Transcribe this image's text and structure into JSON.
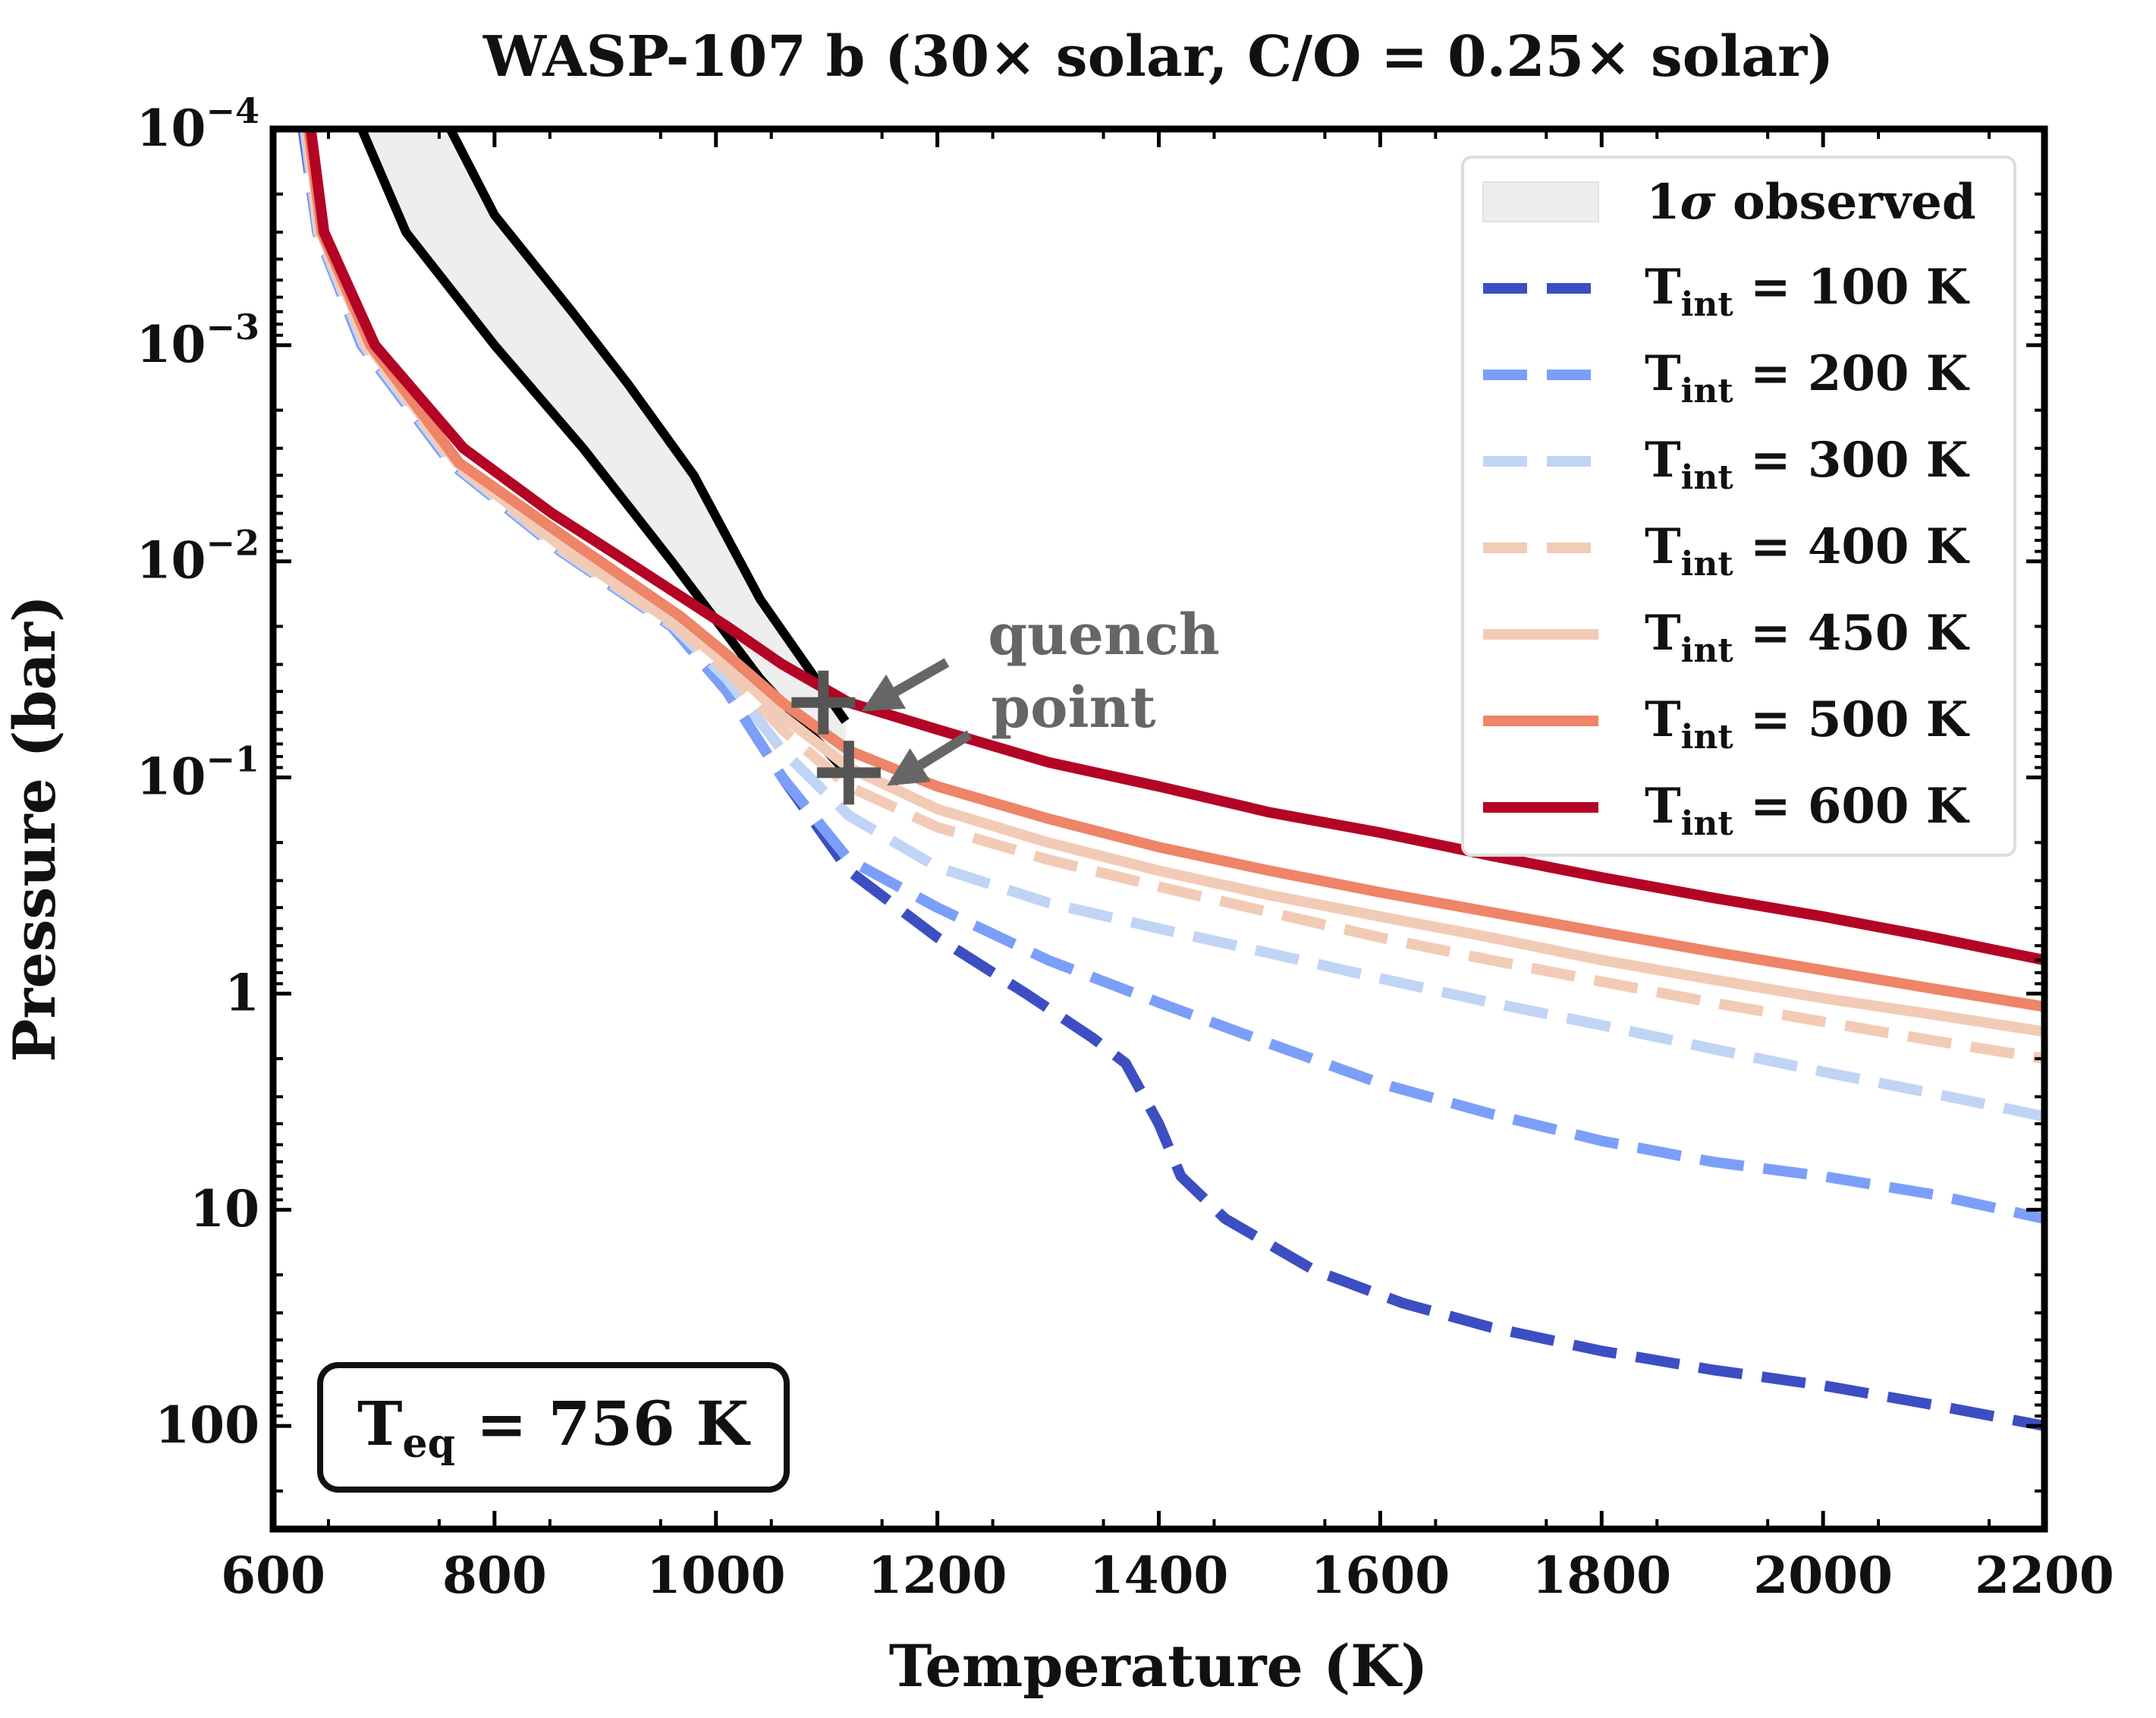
{
  "chart_data": {
    "type": "line",
    "title": "WASP-107 b (30× solar, C/O = 0.25× solar)",
    "xlabel": "Temperature (K)",
    "ylabel": "Pressure (bar)",
    "xlim": [
      600,
      2200
    ],
    "ylim": [
      0.0001,
      300
    ],
    "yscale": "log",
    "yaxis_inverted": true,
    "x_ticks": [
      {
        "value": 600,
        "label": "600"
      },
      {
        "value": 800,
        "label": "800"
      },
      {
        "value": 1000,
        "label": "1000"
      },
      {
        "value": 1200,
        "label": "1200"
      },
      {
        "value": 1400,
        "label": "1400"
      },
      {
        "value": 1600,
        "label": "1600"
      },
      {
        "value": 1800,
        "label": "1800"
      },
      {
        "value": 2000,
        "label": "2000"
      },
      {
        "value": 2200,
        "label": "2200"
      }
    ],
    "y_ticks": [
      {
        "value": 0.0001,
        "base": "10",
        "exp": "−4",
        "label": ""
      },
      {
        "value": 0.001,
        "base": "10",
        "exp": "−3",
        "label": ""
      },
      {
        "value": 0.01,
        "base": "10",
        "exp": "−2",
        "label": ""
      },
      {
        "value": 0.1,
        "base": "10",
        "exp": "−1",
        "label": ""
      },
      {
        "value": 1,
        "base": "",
        "exp": "",
        "label": "1"
      },
      {
        "value": 10,
        "base": "",
        "exp": "",
        "label": "10"
      },
      {
        "value": 100,
        "base": "",
        "exp": "",
        "label": "100"
      }
    ],
    "observed_band": {
      "name": "1σ observed",
      "legend_main": "1",
      "legend_sigma": "σ",
      "legend_rest": " observed",
      "color": "#eeeeee",
      "edge_color": "#000000",
      "lower": [
        [
          680,
          0.0001
        ],
        [
          720,
          0.0003
        ],
        [
          800,
          0.001
        ],
        [
          880,
          0.003
        ],
        [
          960,
          0.01
        ],
        [
          1040,
          0.035
        ],
        [
          1118,
          0.095
        ]
      ],
      "upper": [
        [
          760,
          0.0001
        ],
        [
          800,
          0.00025
        ],
        [
          870,
          0.0007
        ],
        [
          920,
          0.0015
        ],
        [
          980,
          0.004
        ],
        [
          1040,
          0.015
        ],
        [
          1117,
          0.055
        ]
      ]
    },
    "series": [
      {
        "name": "Tint = 100 K",
        "label_main": "T",
        "label_sub": "int",
        "label_rest": " = 100 K",
        "color": "#3c4ec2",
        "dash": true,
        "points": [
          [
            627,
            0.0001
          ],
          [
            640,
            0.0003
          ],
          [
            680,
            0.001
          ],
          [
            760,
            0.0035
          ],
          [
            860,
            0.009
          ],
          [
            960,
            0.02
          ],
          [
            1010,
            0.04
          ],
          [
            1060,
            0.1
          ],
          [
            1120,
            0.27
          ],
          [
            1200,
            0.55
          ],
          [
            1280,
            1.0
          ],
          [
            1340,
            1.6
          ],
          [
            1370,
            2.1
          ],
          [
            1400,
            4
          ],
          [
            1420,
            7
          ],
          [
            1460,
            11
          ],
          [
            1540,
            19
          ],
          [
            1620,
            27
          ],
          [
            1700,
            35
          ],
          [
            1800,
            45
          ],
          [
            1900,
            55
          ],
          [
            2000,
            65
          ],
          [
            2100,
            80
          ],
          [
            2200,
            100
          ]
        ]
      },
      {
        "name": "Tint = 200 K",
        "label_main": "T",
        "label_sub": "int",
        "label_rest": " = 200 K",
        "color": "#7b9ff9",
        "dash": true,
        "points": [
          [
            628,
            0.0001
          ],
          [
            640,
            0.0003
          ],
          [
            680,
            0.001
          ],
          [
            760,
            0.0035
          ],
          [
            860,
            0.009
          ],
          [
            960,
            0.02
          ],
          [
            1010,
            0.04
          ],
          [
            1060,
            0.1
          ],
          [
            1120,
            0.24
          ],
          [
            1200,
            0.4
          ],
          [
            1300,
            0.7
          ],
          [
            1400,
            1.1
          ],
          [
            1500,
            1.7
          ],
          [
            1600,
            2.6
          ],
          [
            1700,
            3.6
          ],
          [
            1800,
            4.8
          ],
          [
            1900,
            6
          ],
          [
            2000,
            7
          ],
          [
            2100,
            8.5
          ],
          [
            2200,
            11
          ]
        ]
      },
      {
        "name": "Tint = 300 K",
        "label_main": "T",
        "label_sub": "int",
        "label_rest": " = 300 K",
        "color": "#c0d4f5",
        "dash": true,
        "points": [
          [
            629,
            0.0001
          ],
          [
            641,
            0.0003
          ],
          [
            682,
            0.001
          ],
          [
            762,
            0.0035
          ],
          [
            862,
            0.009
          ],
          [
            962,
            0.02
          ],
          [
            1010,
            0.035
          ],
          [
            1060,
            0.075
          ],
          [
            1120,
            0.15
          ],
          [
            1200,
            0.26
          ],
          [
            1300,
            0.38
          ],
          [
            1400,
            0.5
          ],
          [
            1500,
            0.65
          ],
          [
            1600,
            0.85
          ],
          [
            1700,
            1.1
          ],
          [
            1800,
            1.4
          ],
          [
            1900,
            1.8
          ],
          [
            2000,
            2.3
          ],
          [
            2100,
            2.9
          ],
          [
            2200,
            3.7
          ]
        ]
      },
      {
        "name": "Tint = 400 K",
        "label_main": "T",
        "label_sub": "int",
        "label_rest": " = 400 K",
        "color": "#f2cbb7",
        "dash": true,
        "points": [
          [
            630,
            0.0001
          ],
          [
            642,
            0.0003
          ],
          [
            684,
            0.001
          ],
          [
            764,
            0.0035
          ],
          [
            864,
            0.009
          ],
          [
            964,
            0.02
          ],
          [
            1010,
            0.032
          ],
          [
            1060,
            0.06
          ],
          [
            1120,
            0.11
          ],
          [
            1200,
            0.17
          ],
          [
            1300,
            0.24
          ],
          [
            1400,
            0.32
          ],
          [
            1500,
            0.42
          ],
          [
            1600,
            0.55
          ],
          [
            1700,
            0.7
          ],
          [
            1800,
            0.88
          ],
          [
            1900,
            1.1
          ],
          [
            2000,
            1.35
          ],
          [
            2100,
            1.65
          ],
          [
            2200,
            2.0
          ]
        ]
      },
      {
        "name": "Tint = 450 K",
        "label_main": "T",
        "label_sub": "int",
        "label_rest": " = 450 K",
        "color": "#f2cbb7",
        "dash": false,
        "points": [
          [
            631,
            0.0001
          ],
          [
            643,
            0.0003
          ],
          [
            686,
            0.001
          ],
          [
            766,
            0.0035
          ],
          [
            866,
            0.009
          ],
          [
            966,
            0.02
          ],
          [
            1010,
            0.03
          ],
          [
            1060,
            0.052
          ],
          [
            1120,
            0.09
          ],
          [
            1200,
            0.14
          ],
          [
            1300,
            0.2
          ],
          [
            1400,
            0.27
          ],
          [
            1500,
            0.35
          ],
          [
            1600,
            0.44
          ],
          [
            1700,
            0.55
          ],
          [
            1800,
            0.7
          ],
          [
            1900,
            0.86
          ],
          [
            2000,
            1.05
          ],
          [
            2100,
            1.25
          ],
          [
            2200,
            1.5
          ]
        ]
      },
      {
        "name": "Tint = 500 K",
        "label_main": "T",
        "label_sub": "int",
        "label_rest": " = 500 K",
        "color": "#ee8468",
        "dash": false,
        "points": [
          [
            632,
            0.0001
          ],
          [
            644,
            0.0003
          ],
          [
            688,
            0.001
          ],
          [
            768,
            0.0035
          ],
          [
            868,
            0.008
          ],
          [
            968,
            0.018
          ],
          [
            1010,
            0.027
          ],
          [
            1060,
            0.045
          ],
          [
            1120,
            0.075
          ],
          [
            1200,
            0.11
          ],
          [
            1300,
            0.155
          ],
          [
            1400,
            0.21
          ],
          [
            1500,
            0.27
          ],
          [
            1600,
            0.34
          ],
          [
            1700,
            0.42
          ],
          [
            1800,
            0.52
          ],
          [
            1900,
            0.64
          ],
          [
            2000,
            0.78
          ],
          [
            2100,
            0.95
          ],
          [
            2200,
            1.15
          ]
        ]
      },
      {
        "name": "Tint = 600 K",
        "label_main": "T",
        "label_sub": "int",
        "label_rest": " = 600 K",
        "color": "#b40426",
        "dash": false,
        "points": [
          [
            634,
            0.0001
          ],
          [
            646,
            0.0003
          ],
          [
            692,
            0.001
          ],
          [
            772,
            0.003
          ],
          [
            852,
            0.006
          ],
          [
            932,
            0.011
          ],
          [
            1010,
            0.02
          ],
          [
            1060,
            0.03
          ],
          [
            1120,
            0.045
          ],
          [
            1200,
            0.06
          ],
          [
            1300,
            0.085
          ],
          [
            1400,
            0.11
          ],
          [
            1500,
            0.145
          ],
          [
            1600,
            0.18
          ],
          [
            1700,
            0.23
          ],
          [
            1800,
            0.29
          ],
          [
            1900,
            0.36
          ],
          [
            2000,
            0.44
          ],
          [
            2100,
            0.55
          ],
          [
            2200,
            0.7
          ]
        ]
      }
    ],
    "quench_points": [
      {
        "x": 1097,
        "y": 0.045
      },
      {
        "x": 1120,
        "y": 0.095
      }
    ],
    "annotation": {
      "line1": "quench",
      "line2": "point",
      "color": "#666666"
    },
    "teq_box": {
      "main": "T",
      "sub": "eq",
      "rest": " = 756 K"
    },
    "legend": {
      "position": "top-right"
    }
  }
}
